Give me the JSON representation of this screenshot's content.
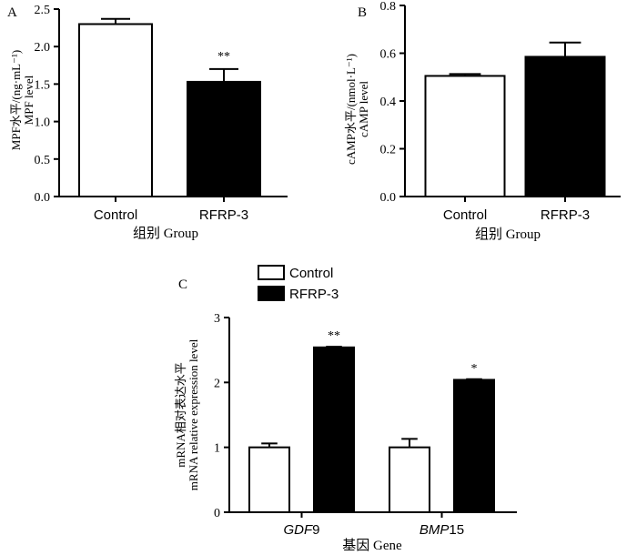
{
  "chart_data": [
    {
      "panel": "A",
      "type": "bar",
      "categories": [
        "Control",
        "RFRP-3"
      ],
      "values": [
        2.3,
        1.53
      ],
      "errors": [
        0.07,
        0.17
      ],
      "colors": [
        "#ffffff",
        "#000000"
      ],
      "significance": [
        "",
        "**"
      ],
      "ylabel_line1": "MPF水平/(ng·mL⁻¹)",
      "ylabel_line2": "MPF level",
      "xlabel": "组别  Group",
      "ylim": [
        0,
        2.5
      ],
      "yticks": [
        "0.0",
        "0.5",
        "1.0",
        "1.5",
        "2.0",
        "2.5"
      ]
    },
    {
      "panel": "B",
      "type": "bar",
      "categories": [
        "Control",
        "RFRP-3"
      ],
      "values": [
        0.505,
        0.585
      ],
      "errors": [
        0.008,
        0.06
      ],
      "colors": [
        "#ffffff",
        "#000000"
      ],
      "significance": [
        "",
        ""
      ],
      "ylabel_line1": "cAMP水平/(nmol·L⁻¹)",
      "ylabel_line2": "cAMP level",
      "xlabel": "组别  Group",
      "ylim": [
        0,
        0.8
      ],
      "yticks": [
        "0.0",
        "0.2",
        "0.4",
        "0.6",
        "0.8"
      ]
    },
    {
      "panel": "C",
      "type": "bar",
      "categories": [
        "GDF9",
        "BMP15"
      ],
      "category_italic": [
        "GDF",
        "BMP"
      ],
      "category_plain": [
        "9",
        "15"
      ],
      "series": [
        {
          "name": "Control",
          "values": [
            1.0,
            1.0
          ],
          "errors": [
            0.06,
            0.13
          ],
          "color": "#ffffff",
          "significance": [
            "",
            ""
          ]
        },
        {
          "name": "RFRP-3",
          "values": [
            2.54,
            2.04
          ],
          "errors": [
            0.01,
            0.01
          ],
          "color": "#000000",
          "significance": [
            "**",
            "*"
          ]
        }
      ],
      "ylabel_line1": "mRNA相对表达水平",
      "ylabel_line2": "mRNA relative expression level",
      "xlabel": "基因  Gene",
      "ylim": [
        0,
        3
      ],
      "yticks": [
        "0",
        "1",
        "2",
        "3"
      ]
    }
  ]
}
